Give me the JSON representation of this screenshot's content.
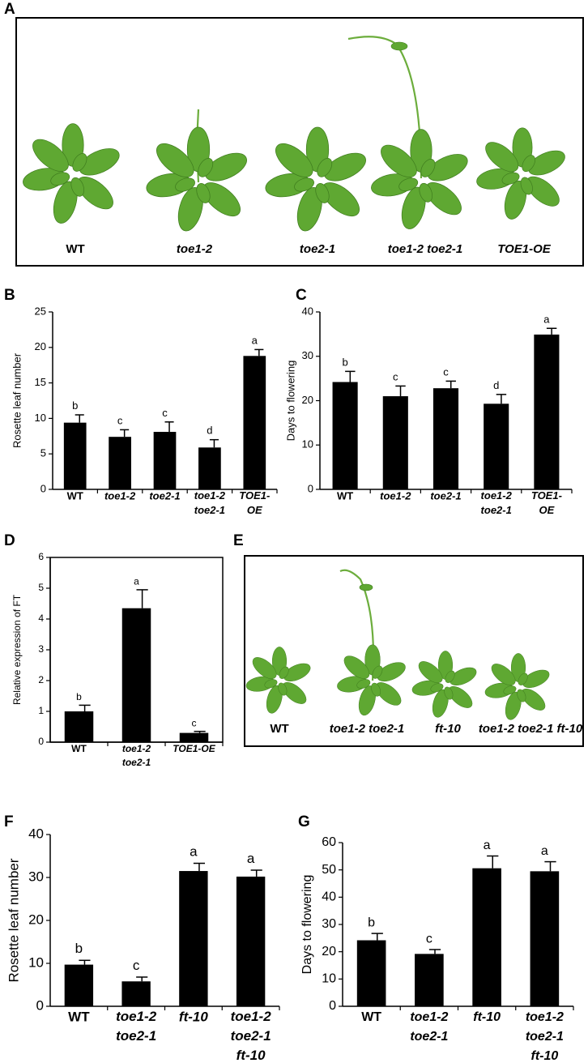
{
  "photo_panels": [
    {
      "panel": "A",
      "labels": [
        "WT",
        "toe1-2",
        "toe2-1",
        "toe1-2 toe2-1",
        "TOE1-OE"
      ]
    },
    {
      "panel": "E",
      "labels": [
        "WT",
        "toe1-2 toe2-1",
        "ft-10",
        "toe1-2 toe2-1 ft-10"
      ]
    }
  ],
  "chart_data": [
    {
      "type": "bar",
      "panel": "B",
      "y_label": "Rosette leaf number",
      "categories": [
        "WT",
        "toe1-2",
        "toe2-1",
        "toe1-2\ntoe2-1",
        "TOE1-\nOE"
      ],
      "values": [
        9.4,
        7.4,
        8.1,
        5.9,
        18.8
      ],
      "errors": [
        1.1,
        1.0,
        1.4,
        1.1,
        0.9
      ],
      "letters": [
        "b",
        "c",
        "c",
        "d",
        "a"
      ],
      "color": "#000000",
      "ylim": [
        0,
        25
      ],
      "yticks": [
        0,
        5,
        10,
        15,
        20,
        25
      ],
      "box": false
    },
    {
      "type": "bar",
      "panel": "C",
      "y_label": "Days to flowering",
      "categories": [
        "WT",
        "toe1-2",
        "toe2-1",
        "toe1-2\ntoe2-1",
        "TOE1-\nOE"
      ],
      "values": [
        24.2,
        21.0,
        22.8,
        19.3,
        34.9
      ],
      "errors": [
        2.4,
        2.3,
        1.6,
        2.1,
        1.4
      ],
      "letters": [
        "b",
        "c",
        "c",
        "d",
        "a"
      ],
      "color": "#000000",
      "ylim": [
        0,
        40
      ],
      "yticks": [
        0,
        10,
        20,
        30,
        40
      ],
      "box": false
    },
    {
      "type": "bar",
      "panel": "D",
      "y_label": "Relative expression of FT",
      "categories": [
        "WT",
        "toe1-2\ntoe2-1",
        "TOE1-OE"
      ],
      "values": [
        1.0,
        4.35,
        0.3
      ],
      "errors": [
        0.2,
        0.6,
        0.05
      ],
      "letters": [
        "b",
        "a",
        "c"
      ],
      "color": "#000000",
      "ylim": [
        0,
        6
      ],
      "yticks": [
        0,
        1,
        2,
        3,
        4,
        5,
        6
      ],
      "box": true
    },
    {
      "type": "bar",
      "panel": "F",
      "y_label": "Rosette leaf number",
      "categories": [
        "WT",
        "toe1-2\ntoe2-1",
        "ft-10",
        "toe1-2\ntoe2-1\nft-10"
      ],
      "values": [
        9.7,
        5.8,
        31.5,
        30.2
      ],
      "errors": [
        1.0,
        1.0,
        1.8,
        1.5
      ],
      "letters": [
        "b",
        "c",
        "a",
        "a"
      ],
      "color": "#000000",
      "ylim": [
        0,
        40
      ],
      "yticks": [
        0,
        10,
        20,
        30,
        40
      ],
      "box": false
    },
    {
      "type": "bar",
      "panel": "G",
      "y_label": "Days to flowering",
      "categories": [
        "WT",
        "toe1-2\ntoe2-1",
        "ft-10",
        "toe1-2\ntoe2-1\nft-10"
      ],
      "values": [
        24.2,
        19.2,
        50.6,
        49.5
      ],
      "errors": [
        2.5,
        1.6,
        4.5,
        3.5
      ],
      "letters": [
        "b",
        "c",
        "a",
        "a"
      ],
      "color": "#000000",
      "ylim": [
        0,
        60
      ],
      "yticks": [
        0,
        10,
        20,
        30,
        40,
        50,
        60
      ],
      "box": false
    }
  ]
}
